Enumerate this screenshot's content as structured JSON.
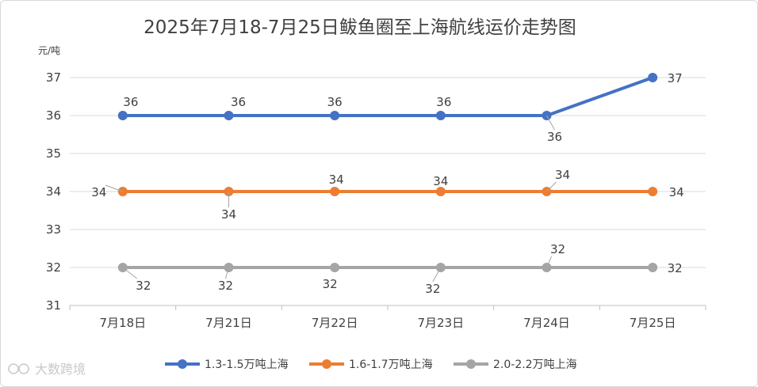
{
  "chart_data": {
    "type": "line",
    "title": "2025年7月18-7月25日鲅鱼圈至上海航线运价走势图",
    "ylabel": "元/吨",
    "categories": [
      "7月18日",
      "7月21日",
      "7月22日",
      "7月23日",
      "7月24日",
      "7月25日"
    ],
    "ylim": [
      31,
      37
    ],
    "yticks": [
      31,
      32,
      33,
      34,
      35,
      36,
      37
    ],
    "grid": true,
    "legend_position": "bottom",
    "series": [
      {
        "name": "1.3-1.5万吨上海",
        "color": "#4472c4",
        "values": [
          36,
          36,
          36,
          36,
          36,
          37
        ]
      },
      {
        "name": "1.6-1.7万吨上海",
        "color": "#ed7d31",
        "values": [
          34,
          34,
          34,
          34,
          34,
          34
        ]
      },
      {
        "name": "2.0-2.2万吨上海",
        "color": "#a5a5a5",
        "values": [
          32,
          32,
          32,
          32,
          32,
          32
        ]
      }
    ]
  },
  "watermark": {
    "text": "大数跨境"
  }
}
